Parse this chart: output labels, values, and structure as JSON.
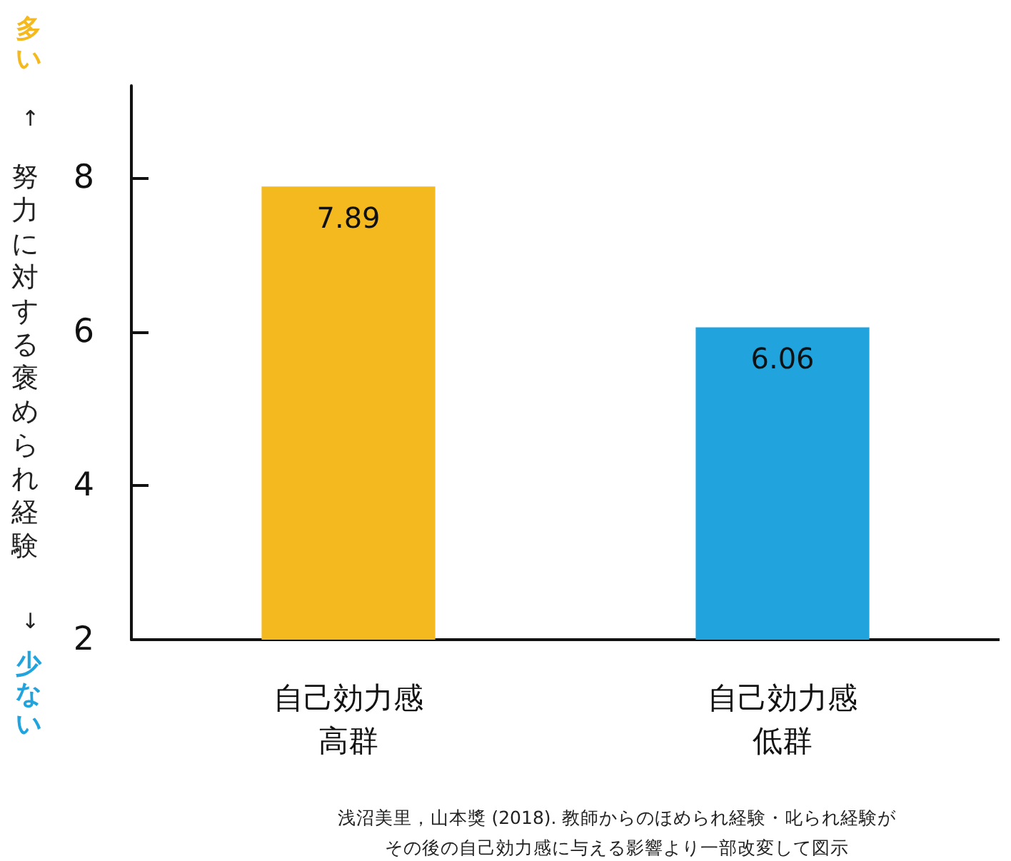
{
  "chart_data": {
    "type": "bar",
    "ylabel": "努力に対する褒められ経験",
    "categories": [
      "自己効力感高群",
      "自己効力感低群"
    ],
    "values": [
      7.89,
      6.06
    ],
    "colors": [
      "#f3b91f",
      "#21a4de"
    ],
    "ylim": [
      2,
      9.2
    ],
    "yticks": [
      2,
      4,
      6,
      8
    ],
    "grid": false,
    "data_labels": true,
    "annotations": [
      "多い",
      "↑",
      "↓",
      "少ない",
      "浅沼美里，山本獎 (2018). 教師からのほめられ経験・叱られ経験が",
      "その後の自己効力感に与える影響より一部改変して図示"
    ]
  }
}
